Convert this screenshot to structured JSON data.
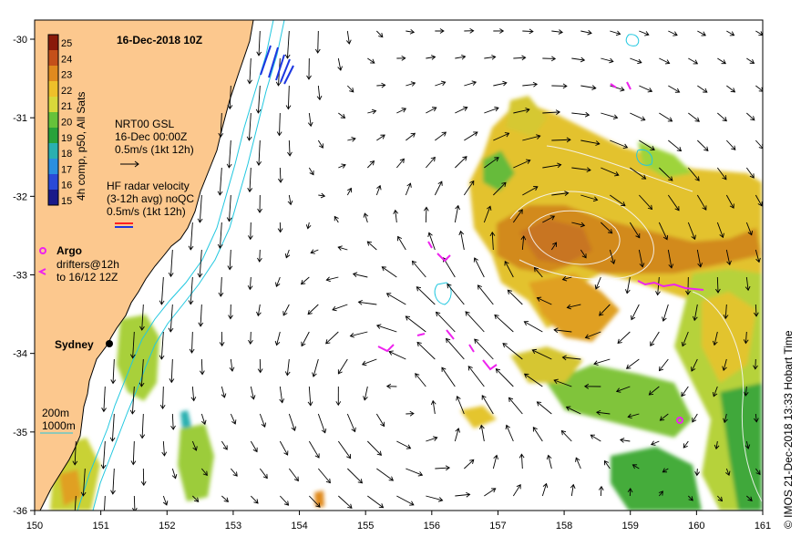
{
  "title": "16-Dec-2018 10Z",
  "colorbar": {
    "label": "4h comp, p50, All Sats",
    "ticks": [
      "25",
      "24",
      "23",
      "22",
      "21",
      "20",
      "19",
      "18",
      "17",
      "16",
      "15"
    ],
    "colors": [
      "#8a1a0a",
      "#c4501a",
      "#e08a1e",
      "#eec02a",
      "#d8d83a",
      "#66c23a",
      "#28a23a",
      "#2ab0b0",
      "#2a8fe0",
      "#2a4ad8",
      "#1a1a8a"
    ]
  },
  "nrt_legend": {
    "line1": "NRT00 GSL",
    "line2": "16-Dec 00:00Z",
    "line3": "0.5m/s (1kt 12h)"
  },
  "hf_legend": {
    "line1": "HF radar velocity",
    "line2": "(3-12h avg) noQC",
    "line3": "0.5m/s (1kt 12h)"
  },
  "argo_legend": {
    "label": "Argo",
    "line1": "drifters@12h",
    "line2": "to 16/12 12Z"
  },
  "city": {
    "name": "Sydney"
  },
  "contours": {
    "c200": "200m",
    "c1000": "1000m"
  },
  "credit": "© IMOS 21-Dec-2018 13:33 Hobart Time",
  "axes": {
    "x_ticks": [
      "150",
      "151",
      "152",
      "153",
      "154",
      "155",
      "156",
      "157",
      "158",
      "159",
      "160",
      "161"
    ],
    "y_ticks": [
      "-30",
      "-31",
      "-32",
      "-33",
      "-34",
      "-35",
      "-36"
    ]
  },
  "colors": {
    "land": "#fcc88e",
    "ocean": "#ffffff",
    "bathy": "#22c8e0",
    "argo": "#ee22ee",
    "hf_red": "#ff2020",
    "hf_blue": "#1c36e0"
  }
}
